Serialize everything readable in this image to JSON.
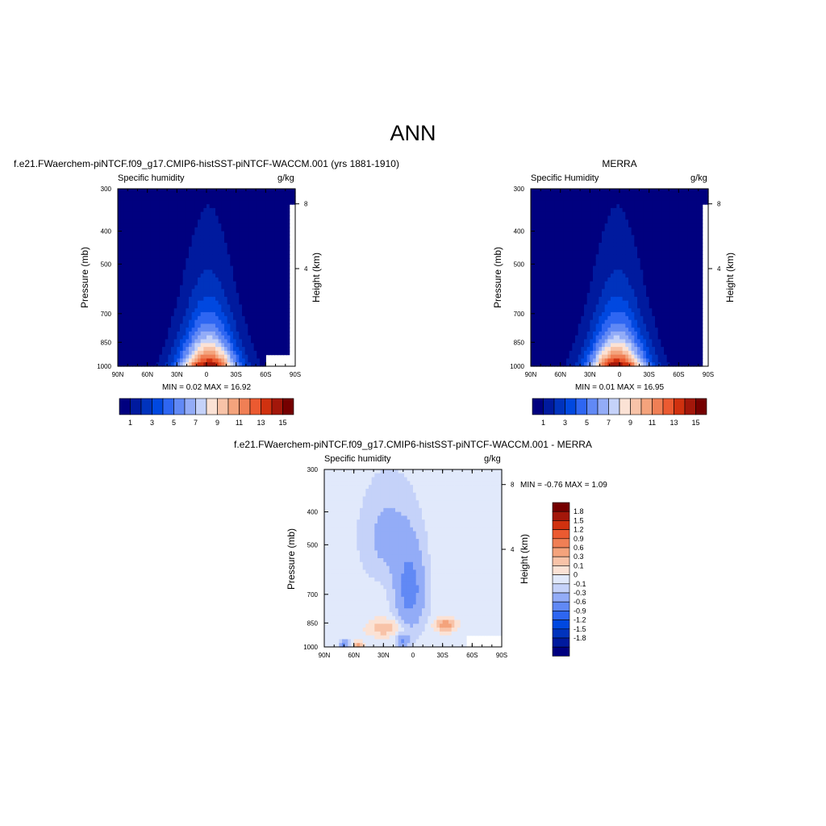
{
  "page": {
    "main_title": "ANN"
  },
  "colors": {
    "abs_scale": [
      "#00007F",
      "#001A9E",
      "#0033BD",
      "#0048E0",
      "#2E66F2",
      "#6189F5",
      "#93ACF7",
      "#C5D2F9",
      "#FBE2D5",
      "#F8C3A8",
      "#F4A37C",
      "#F07F55",
      "#EB5A31",
      "#D0310F",
      "#A3170A",
      "#750000"
    ],
    "diff_scale": [
      "#00007F",
      "#001A9E",
      "#0033BD",
      "#0048E0",
      "#2E66F2",
      "#6189F5",
      "#93ACF7",
      "#C5D2F9",
      "#E1E9FB",
      "#FFFFFF",
      "#FBE2D5",
      "#F8C3A8",
      "#F4A37C",
      "#F07F55",
      "#EB5A31",
      "#D0310F",
      "#A3170A",
      "#750000"
    ]
  },
  "chart_data": [
    {
      "type": "heatmap",
      "panel": "model",
      "title": "f.e21.FWaerchem-piNTCF.f09_g17.CMIP6-histSST-piNTCF-WACCM.001 (yrs 1881-1910)",
      "variable": "Specific humidity",
      "units": "g/kg",
      "ylabel": "Pressure (mb)",
      "ylabel_right": "Height (km)",
      "x_ticks": [
        "90N",
        "60N",
        "30N",
        "0",
        "30S",
        "60S",
        "90S"
      ],
      "y_ticks": [
        "300",
        "400",
        "500",
        "700",
        "850",
        "1000"
      ],
      "y_ticks_right": [
        "8",
        "4"
      ],
      "min_max": "MIN =   0.02  MAX =  16.92",
      "colorbar_labels": [
        "1",
        "3",
        "5",
        "7",
        "9",
        "11",
        "13",
        "15"
      ],
      "field": {
        "peak_lat": -2,
        "peak_value": 16.92,
        "min_value": 0.02
      }
    },
    {
      "type": "heatmap",
      "panel": "obs",
      "title": "MERRA",
      "variable": "Specific Humidity",
      "units": "g/kg",
      "ylabel": "Pressure (mb)",
      "ylabel_right": "Height (km)",
      "x_ticks": [
        "90N",
        "60N",
        "30N",
        "0",
        "30S",
        "60S",
        "90S"
      ],
      "y_ticks": [
        "300",
        "400",
        "500",
        "700",
        "850",
        "1000"
      ],
      "y_ticks_right": [
        "8",
        "4"
      ],
      "min_max": "MIN =   0.01  MAX =  16.95",
      "colorbar_labels": [
        "1",
        "3",
        "5",
        "7",
        "9",
        "11",
        "13",
        "15"
      ],
      "field": {
        "peak_lat": 2,
        "peak_value": 16.95,
        "min_value": 0.01
      }
    },
    {
      "type": "heatmap",
      "panel": "difference",
      "title": "f.e21.FWaerchem-piNTCF.f09_g17.CMIP6-histSST-piNTCF-WACCM.001 - MERRA",
      "variable": "Specific humidity",
      "units": "g/kg",
      "ylabel": "Pressure (mb)",
      "ylabel_right": "Height (km)",
      "x_ticks": [
        "90N",
        "60N",
        "30N",
        "0",
        "30S",
        "60S",
        "90S"
      ],
      "y_ticks": [
        "300",
        "400",
        "500",
        "700",
        "850",
        "1000"
      ],
      "y_ticks_right": [
        "8",
        "4"
      ],
      "min_max": "MIN =  -0.76  MAX =   1.09",
      "colorbar_labels": [
        "1.8",
        "1.5",
        "1.2",
        "0.9",
        "0.6",
        "0.3",
        "0.1",
        "0",
        "-0.1",
        "-0.3",
        "-0.6",
        "-0.9",
        "-1.2",
        "-1.5",
        "-1.8"
      ]
    }
  ]
}
